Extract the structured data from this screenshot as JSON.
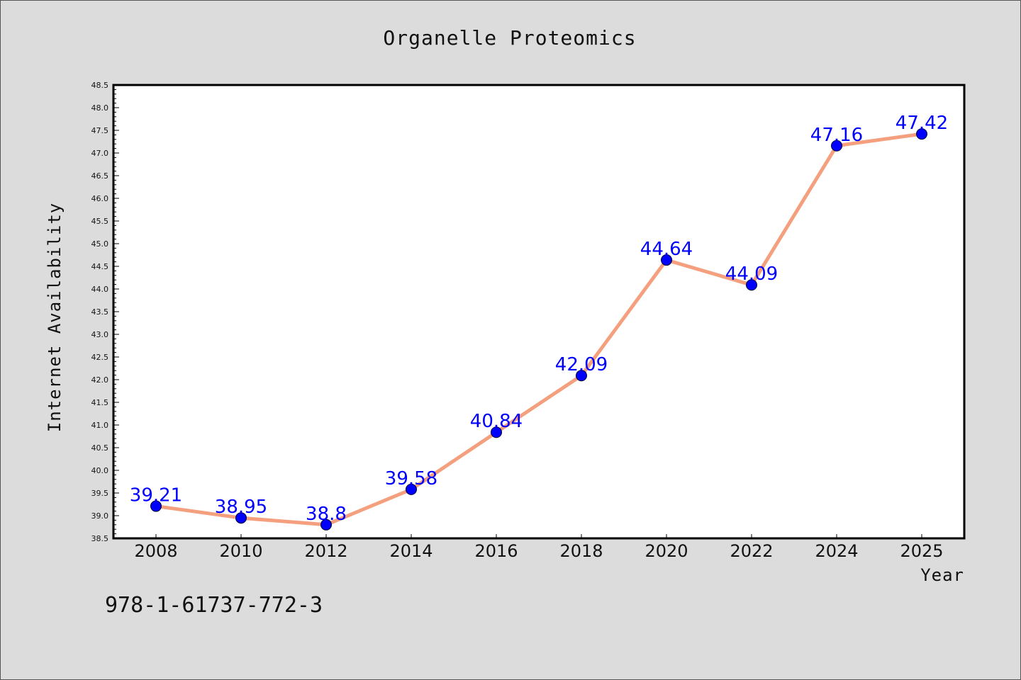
{
  "chart_data": {
    "type": "line",
    "title": "Organelle Proteomics",
    "xlabel": "Year",
    "ylabel": "Internet Availability",
    "categories": [
      "2008",
      "2010",
      "2012",
      "2014",
      "2016",
      "2018",
      "2020",
      "2022",
      "2024",
      "2025"
    ],
    "series": [
      {
        "values": [
          39.21,
          38.95,
          38.8,
          39.58,
          40.84,
          42.09,
          44.64,
          44.09,
          47.16,
          47.42
        ],
        "labels": [
          "39.21",
          "38.95",
          "38.8",
          "39.58",
          "40.84",
          "42.09",
          "44.64",
          "44.09",
          "47.16",
          "47.42"
        ],
        "line_color": "#f4a07e",
        "marker_color": "#0000ff"
      }
    ],
    "ylim": [
      38.5,
      48.5
    ],
    "yticks": [
      "38.5",
      "39.0",
      "39.5",
      "40.0",
      "40.5",
      "41.0",
      "41.5",
      "42.0",
      "42.5",
      "43.0",
      "43.5",
      "44.0",
      "44.5",
      "45.0",
      "45.5",
      "46.0",
      "46.5",
      "47.0",
      "47.5",
      "48.0",
      "48.5"
    ],
    "grid": false,
    "legend": "none"
  },
  "footer": {
    "isbn": "978-1-61737-772-3"
  }
}
